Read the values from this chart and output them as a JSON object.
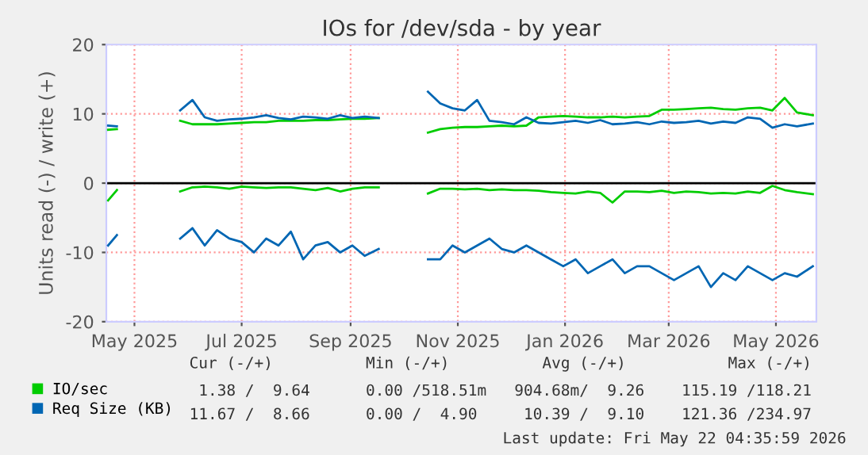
{
  "chart_data": {
    "type": "line",
    "title": "IOs for /dev/sda - by year",
    "ylabel": "Units read (-) / write (+)",
    "x": [
      "2025-04-16",
      "2025-04-21",
      "2025-05-05",
      "2025-05-27",
      "2025-06-03",
      "2025-06-10",
      "2025-06-17",
      "2025-06-24",
      "2025-07-01",
      "2025-07-08",
      "2025-07-15",
      "2025-07-22",
      "2025-07-29",
      "2025-08-05",
      "2025-08-12",
      "2025-08-19",
      "2025-08-26",
      "2025-09-02",
      "2025-09-09",
      "2025-09-17",
      "2025-10-01",
      "2025-10-15",
      "2025-10-22",
      "2025-10-29",
      "2025-11-05",
      "2025-11-12",
      "2025-11-19",
      "2025-11-26",
      "2025-12-03",
      "2025-12-10",
      "2025-12-17",
      "2025-12-24",
      "2025-12-31",
      "2026-01-07",
      "2026-01-14",
      "2026-01-21",
      "2026-01-28",
      "2026-02-04",
      "2026-02-11",
      "2026-02-18",
      "2026-02-25",
      "2026-03-04",
      "2026-03-11",
      "2026-03-18",
      "2026-03-25",
      "2026-04-01",
      "2026-04-08",
      "2026-04-15",
      "2026-04-22",
      "2026-04-29",
      "2026-05-06",
      "2026-05-13",
      "2026-05-22"
    ],
    "series": [
      {
        "name": "IO/sec",
        "color": "#00cc00",
        "values": [
          7.7,
          7.8,
          null,
          9,
          8.5,
          8.5,
          8.5,
          8.6,
          8.7,
          8.8,
          8.8,
          9,
          9,
          9,
          9.1,
          9.1,
          9.2,
          9.3,
          9.3,
          9.4,
          null,
          7.3,
          7.8,
          8,
          8.1,
          8.1,
          8.2,
          8.3,
          8.2,
          8.3,
          9.5,
          9.6,
          9.7,
          9.6,
          9.5,
          9.5,
          9.6,
          9.5,
          9.6,
          9.7,
          10.6,
          10.6,
          10.7,
          10.8,
          10.9,
          10.7,
          10.6,
          10.8,
          10.9,
          10.5,
          12.3,
          10.2,
          9.8
        ]
      },
      {
        "name": "Req Size (KB)",
        "color": "#0066b3",
        "values": [
          8.3,
          8.2,
          null,
          10.5,
          12,
          9.5,
          9,
          9.2,
          9.3,
          9.5,
          9.8,
          9.4,
          9.2,
          9.6,
          9.5,
          9.3,
          9.8,
          9.4,
          9.6,
          9.4,
          null,
          13.2,
          11.5,
          10.8,
          10.5,
          12,
          9,
          8.8,
          8.5,
          9.5,
          8.7,
          8.6,
          8.8,
          9,
          8.7,
          9.1,
          8.5,
          8.6,
          8.8,
          8.5,
          8.9,
          8.7,
          8.8,
          9,
          8.6,
          8.9,
          8.7,
          9.5,
          9.3,
          8,
          8.5,
          8.2,
          8.6
        ]
      },
      {
        "color": "#00cc00",
        "values": [
          -2.5,
          -1,
          null,
          -1.2,
          -0.6,
          -0.5,
          -0.6,
          -0.8,
          -0.5,
          -0.6,
          -0.7,
          -0.6,
          -0.6,
          -0.8,
          -1,
          -0.7,
          -1.2,
          -0.8,
          -0.6,
          -0.6,
          null,
          -1.5,
          -0.8,
          -0.8,
          -0.9,
          -0.8,
          -1,
          -0.9,
          -1,
          -1,
          -1.1,
          -1.3,
          -1.4,
          -1.5,
          -1.2,
          -1.4,
          -2.8,
          -1.2,
          -1.2,
          -1.3,
          -1.1,
          -1.4,
          -1.2,
          -1.3,
          -1.5,
          -1.4,
          -1.5,
          -1.2,
          -1.4,
          -0.4,
          -1,
          -1.3,
          -1.6
        ]
      },
      {
        "color": "#0066b3",
        "values": [
          -9,
          -7.5,
          null,
          -8,
          -6.5,
          -9,
          -6.8,
          -8,
          -8.5,
          -10,
          -8,
          -9,
          -7,
          -11,
          -9,
          -8.5,
          -10,
          -9,
          -10.5,
          -9.5,
          null,
          -11,
          -11,
          -9,
          -10,
          -9,
          -8,
          -9.5,
          -10,
          -9,
          -10,
          -11,
          -12,
          -11,
          -13,
          -12,
          -11,
          -13,
          -12,
          -12,
          -13,
          -14,
          -13,
          -12,
          -15,
          -13,
          -14,
          -12,
          -13,
          -14,
          -13,
          -13.5,
          -12
        ]
      }
    ],
    "xlim": [
      "2025-04-15",
      "2026-05-24"
    ],
    "xticks": [
      {
        "value": "2025-05-01",
        "label": "May 2025"
      },
      {
        "value": "2025-07-01",
        "label": "Jul 2025"
      },
      {
        "value": "2025-09-01",
        "label": "Sep 2025"
      },
      {
        "value": "2025-11-01",
        "label": "Nov 2025"
      },
      {
        "value": "2026-01-01",
        "label": "Jan 2026"
      },
      {
        "value": "2026-03-01",
        "label": "Mar 2026"
      },
      {
        "value": "2026-05-01",
        "label": "May 2026"
      }
    ],
    "ylim": [
      -20,
      20
    ],
    "yticks": [
      -20,
      -10,
      0,
      10,
      20
    ],
    "ref_lines": [
      {
        "axis": "y",
        "value": 0,
        "color": "#000000"
      }
    ],
    "grid": true,
    "legend": "bottom",
    "marker": "none",
    "line_style": "solid",
    "annotations": [
      "Cur (-/+)          Min (-/+)          Avg (-/+)           Max (-/+)",
      "1.38 /  9.64      0.00 /518.51m   904.68m/  9.26    115.19 /118.21",
      "11.67 /  8.66      0.00 /  4.90     10.39 /  9.10    121.36 /234.97",
      "Last update: Fri May 22 04:35:59 2026"
    ]
  }
}
